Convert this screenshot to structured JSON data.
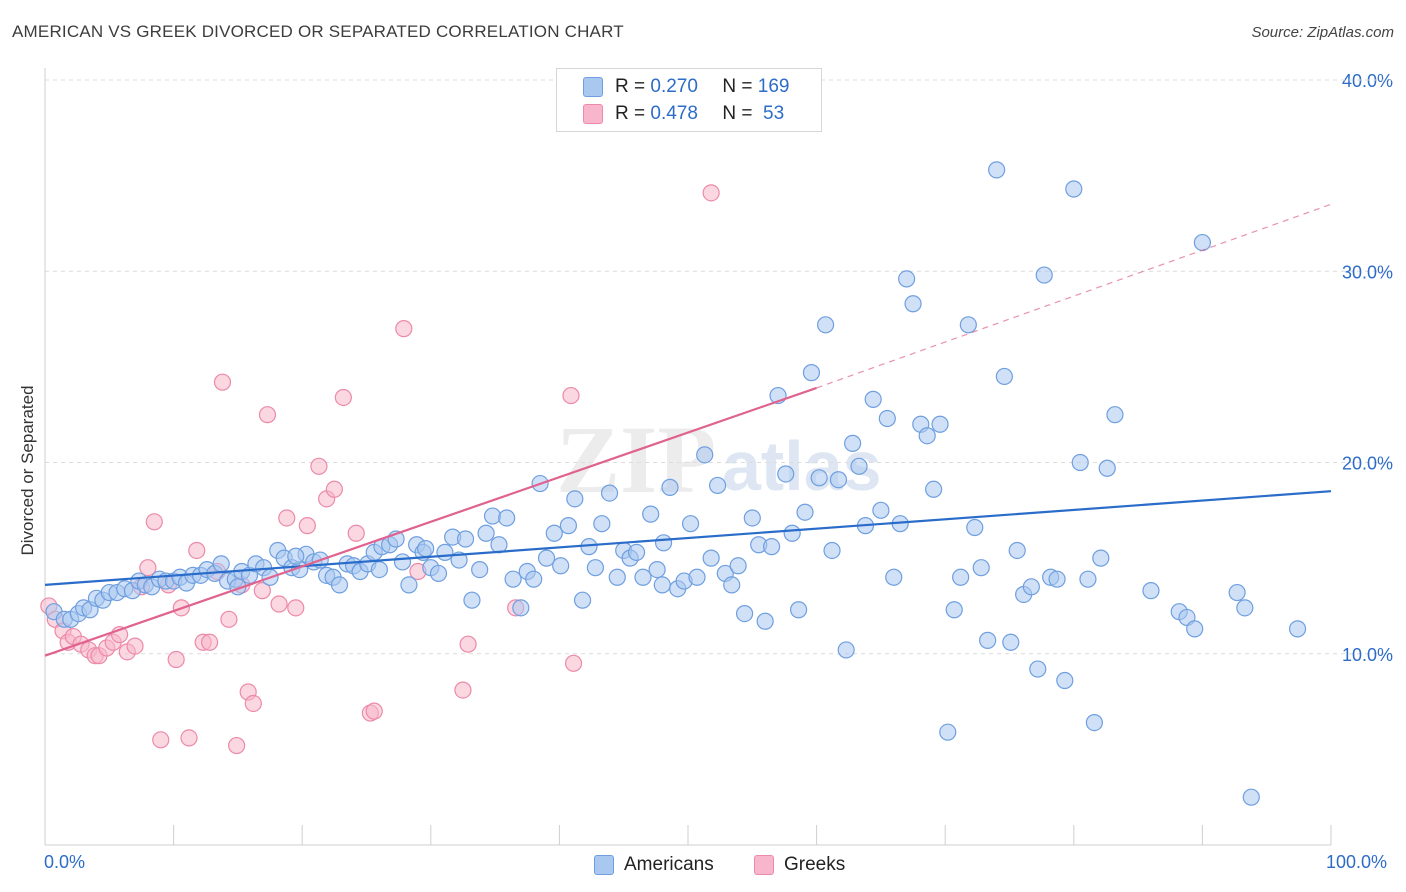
{
  "title": "AMERICAN VS GREEK DIVORCED OR SEPARATED CORRELATION CHART",
  "source": "Source: ZipAtlas.com",
  "legend": {
    "rows": [
      {
        "r_label": "R = ",
        "r_value": "0.270",
        "n_label": "N = ",
        "n_value": "169"
      },
      {
        "r_label": "R = ",
        "r_value": "0.478",
        "n_label": "N = ",
        "n_value": " 53"
      }
    ]
  },
  "bottom_legend": {
    "americans": "Americans",
    "greeks": "Greeks"
  },
  "x_axis": {
    "min_label": "0.0%",
    "max_label": "100.0%"
  },
  "watermark": {
    "zip": "ZIP",
    "atlas": "atlas"
  },
  "colors": {
    "americans_fill": "#a9c8f0",
    "americans_stroke": "#6f9fe0",
    "americans_line": "#2a6cc9",
    "greeks_fill": "#f7b6cb",
    "greeks_stroke": "#ec8aa8",
    "greeks_line": "#e0628f",
    "axis_text": "#2d6cc8",
    "grid": "#dcdcdc"
  },
  "chart_data": {
    "type": "scatter",
    "title": "AMERICAN VS GREEK DIVORCED OR SEPARATED CORRELATION CHART",
    "xlabel": "",
    "ylabel": "Divorced or Separated",
    "xlim": [
      0,
      100
    ],
    "ylim": [
      0,
      40
    ],
    "y_ticks": [
      10,
      20,
      30,
      40
    ],
    "y_tick_labels": [
      "10.0%",
      "20.0%",
      "30.0%",
      "40.0%"
    ],
    "grid": true,
    "series": [
      {
        "name": "Americans",
        "r": 0.27,
        "n": 169,
        "trend": {
          "x": [
            0,
            100
          ],
          "y": [
            13.6,
            18.5
          ],
          "dashed_to": null
        },
        "points": [
          [
            0.7,
            12.2
          ],
          [
            1.5,
            11.8
          ],
          [
            2.0,
            11.8
          ],
          [
            2.6,
            12.1
          ],
          [
            3.0,
            12.4
          ],
          [
            3.5,
            12.3
          ],
          [
            4.0,
            12.9
          ],
          [
            4.5,
            12.8
          ],
          [
            5.0,
            13.2
          ],
          [
            5.6,
            13.2
          ],
          [
            6.2,
            13.4
          ],
          [
            6.8,
            13.3
          ],
          [
            7.3,
            13.8
          ],
          [
            7.8,
            13.6
          ],
          [
            8.3,
            13.5
          ],
          [
            8.9,
            13.9
          ],
          [
            9.4,
            13.8
          ],
          [
            10.0,
            13.8
          ],
          [
            10.5,
            14.0
          ],
          [
            11.0,
            13.7
          ],
          [
            11.5,
            14.1
          ],
          [
            12.1,
            14.1
          ],
          [
            12.6,
            14.4
          ],
          [
            13.2,
            14.2
          ],
          [
            13.7,
            14.7
          ],
          [
            14.2,
            13.8
          ],
          [
            14.8,
            13.9
          ],
          [
            15.3,
            14.3
          ],
          [
            15.9,
            14.1
          ],
          [
            16.4,
            14.7
          ],
          [
            17.0,
            14.5
          ],
          [
            17.5,
            14.0
          ],
          [
            18.1,
            15.4
          ],
          [
            18.6,
            15.0
          ],
          [
            19.2,
            14.5
          ],
          [
            19.8,
            14.4
          ],
          [
            20.3,
            15.2
          ],
          [
            20.9,
            14.8
          ],
          [
            21.4,
            14.9
          ],
          [
            21.9,
            14.1
          ],
          [
            22.4,
            14.0
          ],
          [
            22.9,
            13.6
          ],
          [
            23.5,
            14.7
          ],
          [
            24.0,
            14.6
          ],
          [
            24.5,
            14.3
          ],
          [
            25.1,
            14.7
          ],
          [
            25.6,
            15.3
          ],
          [
            26.2,
            15.6
          ],
          [
            26.8,
            15.7
          ],
          [
            27.3,
            16.0
          ],
          [
            27.8,
            14.8
          ],
          [
            28.3,
            13.6
          ],
          [
            28.9,
            15.7
          ],
          [
            29.4,
            15.3
          ],
          [
            30.0,
            14.5
          ],
          [
            30.6,
            14.2
          ],
          [
            31.1,
            15.3
          ],
          [
            31.7,
            16.1
          ],
          [
            32.2,
            14.9
          ],
          [
            32.7,
            16.0
          ],
          [
            33.2,
            12.8
          ],
          [
            33.8,
            14.4
          ],
          [
            34.3,
            16.3
          ],
          [
            34.8,
            17.2
          ],
          [
            35.3,
            15.7
          ],
          [
            35.9,
            17.1
          ],
          [
            36.4,
            13.9
          ],
          [
            37.0,
            12.4
          ],
          [
            37.5,
            14.3
          ],
          [
            38.0,
            13.9
          ],
          [
            38.5,
            18.9
          ],
          [
            39.0,
            15.0
          ],
          [
            39.6,
            16.3
          ],
          [
            40.1,
            14.6
          ],
          [
            40.7,
            16.7
          ],
          [
            41.2,
            18.1
          ],
          [
            41.8,
            12.8
          ],
          [
            42.3,
            15.6
          ],
          [
            42.8,
            14.5
          ],
          [
            43.3,
            16.8
          ],
          [
            43.9,
            18.4
          ],
          [
            44.5,
            14.0
          ],
          [
            45.0,
            15.4
          ],
          [
            45.5,
            15.0
          ],
          [
            46.0,
            15.3
          ],
          [
            46.5,
            14.0
          ],
          [
            47.1,
            17.3
          ],
          [
            47.6,
            14.4
          ],
          [
            48.1,
            15.8
          ],
          [
            48.6,
            18.7
          ],
          [
            49.2,
            13.4
          ],
          [
            49.7,
            13.8
          ],
          [
            50.2,
            16.8
          ],
          [
            50.7,
            14.0
          ],
          [
            51.3,
            20.4
          ],
          [
            51.8,
            15.0
          ],
          [
            52.3,
            18.8
          ],
          [
            52.9,
            14.2
          ],
          [
            53.4,
            13.6
          ],
          [
            53.9,
            14.6
          ],
          [
            54.4,
            12.1
          ],
          [
            55.0,
            17.1
          ],
          [
            55.5,
            15.7
          ],
          [
            56.0,
            11.7
          ],
          [
            56.5,
            15.6
          ],
          [
            57.0,
            23.5
          ],
          [
            57.6,
            19.4
          ],
          [
            58.1,
            16.3
          ],
          [
            58.6,
            12.3
          ],
          [
            59.1,
            17.4
          ],
          [
            59.6,
            24.7
          ],
          [
            60.2,
            19.2
          ],
          [
            60.7,
            27.2
          ],
          [
            61.2,
            15.4
          ],
          [
            61.7,
            19.1
          ],
          [
            62.3,
            10.2
          ],
          [
            62.8,
            21.0
          ],
          [
            63.3,
            19.8
          ],
          [
            63.8,
            16.7
          ],
          [
            64.4,
            23.3
          ],
          [
            65.0,
            17.5
          ],
          [
            65.5,
            22.3
          ],
          [
            66.0,
            14.0
          ],
          [
            66.5,
            16.8
          ],
          [
            67.0,
            29.6
          ],
          [
            67.5,
            28.3
          ],
          [
            68.1,
            22.0
          ],
          [
            68.6,
            21.4
          ],
          [
            69.1,
            18.6
          ],
          [
            69.6,
            22.0
          ],
          [
            70.2,
            5.9
          ],
          [
            70.7,
            12.3
          ],
          [
            71.2,
            14.0
          ],
          [
            71.8,
            27.2
          ],
          [
            72.3,
            16.6
          ],
          [
            72.8,
            14.5
          ],
          [
            73.3,
            10.7
          ],
          [
            74.0,
            35.3
          ],
          [
            74.6,
            24.5
          ],
          [
            75.1,
            10.6
          ],
          [
            75.6,
            15.4
          ],
          [
            76.1,
            13.1
          ],
          [
            76.7,
            13.5
          ],
          [
            77.2,
            9.2
          ],
          [
            77.7,
            29.8
          ],
          [
            78.2,
            14.0
          ],
          [
            78.7,
            13.9
          ],
          [
            79.3,
            8.6
          ],
          [
            80.0,
            34.3
          ],
          [
            80.5,
            20.0
          ],
          [
            81.1,
            13.9
          ],
          [
            81.6,
            6.4
          ],
          [
            82.1,
            15.0
          ],
          [
            82.6,
            19.7
          ],
          [
            83.2,
            22.5
          ],
          [
            86.0,
            13.3
          ],
          [
            88.2,
            12.2
          ],
          [
            88.8,
            11.9
          ],
          [
            89.4,
            11.3
          ],
          [
            90.0,
            31.5
          ],
          [
            92.7,
            13.2
          ],
          [
            93.3,
            12.4
          ],
          [
            93.8,
            2.5
          ],
          [
            97.4,
            11.3
          ],
          [
            15.0,
            13.5
          ],
          [
            19.5,
            15.1
          ],
          [
            26.0,
            14.4
          ],
          [
            29.6,
            15.5
          ],
          [
            48.0,
            13.6
          ]
        ]
      },
      {
        "name": "Greeks",
        "r": 0.478,
        "n": 53,
        "trend": {
          "x": [
            0,
            60
          ],
          "y": [
            9.9,
            23.9
          ],
          "dashed_to": [
            100,
            33.5
          ]
        },
        "points": [
          [
            0.3,
            12.5
          ],
          [
            0.8,
            11.8
          ],
          [
            1.4,
            11.2
          ],
          [
            1.8,
            10.6
          ],
          [
            2.2,
            10.9
          ],
          [
            2.8,
            10.5
          ],
          [
            3.4,
            10.2
          ],
          [
            3.9,
            9.9
          ],
          [
            4.2,
            9.9
          ],
          [
            4.8,
            10.3
          ],
          [
            5.3,
            10.6
          ],
          [
            5.8,
            11.0
          ],
          [
            6.4,
            10.1
          ],
          [
            7.0,
            10.4
          ],
          [
            7.5,
            13.5
          ],
          [
            8.0,
            14.5
          ],
          [
            8.5,
            16.9
          ],
          [
            9.0,
            5.5
          ],
          [
            9.6,
            13.6
          ],
          [
            10.2,
            9.7
          ],
          [
            10.6,
            12.4
          ],
          [
            11.2,
            5.6
          ],
          [
            11.8,
            15.4
          ],
          [
            12.3,
            10.6
          ],
          [
            12.8,
            10.6
          ],
          [
            13.4,
            14.3
          ],
          [
            13.8,
            24.2
          ],
          [
            14.3,
            11.8
          ],
          [
            14.9,
            5.2
          ],
          [
            15.3,
            13.6
          ],
          [
            15.8,
            8.0
          ],
          [
            16.2,
            7.4
          ],
          [
            16.9,
            13.3
          ],
          [
            17.3,
            22.5
          ],
          [
            18.2,
            12.6
          ],
          [
            18.8,
            17.1
          ],
          [
            19.5,
            12.4
          ],
          [
            20.4,
            16.7
          ],
          [
            21.3,
            19.8
          ],
          [
            21.9,
            18.1
          ],
          [
            22.5,
            18.6
          ],
          [
            23.2,
            23.4
          ],
          [
            24.2,
            16.3
          ],
          [
            25.3,
            6.9
          ],
          [
            25.6,
            7.0
          ],
          [
            27.9,
            27.0
          ],
          [
            29.0,
            14.3
          ],
          [
            32.5,
            8.1
          ],
          [
            32.9,
            10.5
          ],
          [
            36.6,
            12.4
          ],
          [
            40.9,
            23.5
          ],
          [
            41.1,
            9.5
          ],
          [
            51.8,
            34.1
          ]
        ]
      }
    ]
  }
}
